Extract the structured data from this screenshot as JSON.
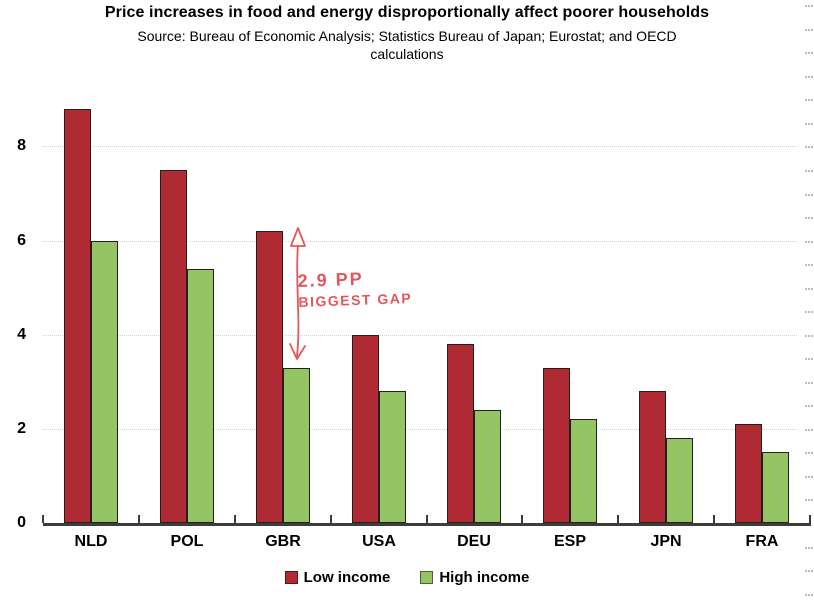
{
  "header": {
    "title": "Price increases in food and energy disproportionally affect poorer households",
    "subtitle_line1": "Source: Bureau of Economic Analysis; Statistics Bureau of Japan; Eurostat; and OECD",
    "subtitle_line2": "calculations"
  },
  "annotation": {
    "line1": "2.9 PP",
    "line2": "BIGGEST GAP",
    "color": "#e2575c"
  },
  "colors": {
    "low_income": "#b02a33",
    "high_income": "#95c464",
    "bar_border": "#24201e",
    "axis": "#3d3d3d",
    "gridline": "#d2d2d2",
    "minor_tick": "#bdbdbd",
    "text": "#000000"
  },
  "legend": {
    "items": [
      {
        "label": "Low income",
        "color": "#b02a33"
      },
      {
        "label": "High income",
        "color": "#95c464"
      }
    ]
  },
  "chart_data": {
    "type": "bar",
    "title": "Price increases in food and energy disproportionally affect poorer households",
    "subtitle": "Source: Bureau of Economic Analysis; Statistics Bureau of Japan; Eurostat; and OECD calculations",
    "categories": [
      "NLD",
      "POL",
      "GBR",
      "USA",
      "DEU",
      "ESP",
      "JPN",
      "FRA"
    ],
    "series": [
      {
        "name": "Low income",
        "color": "#b02a33",
        "values": [
          8.8,
          7.5,
          6.2,
          4.0,
          3.8,
          3.3,
          2.8,
          2.1
        ]
      },
      {
        "name": "High income",
        "color": "#95c464",
        "values": [
          6.0,
          5.4,
          3.3,
          2.8,
          2.4,
          2.2,
          1.8,
          1.5
        ]
      }
    ],
    "xlabel": "",
    "ylabel": "",
    "ylim": [
      0,
      9.2
    ],
    "yticks": [
      0,
      2,
      4,
      6,
      8
    ],
    "grid": "horizontal-dotted-at-yticks",
    "legend_position": "bottom",
    "annotation": "2.9 PP BIGGEST GAP — double-headed arrow marking the gap between GBR low-income and high-income bars"
  }
}
